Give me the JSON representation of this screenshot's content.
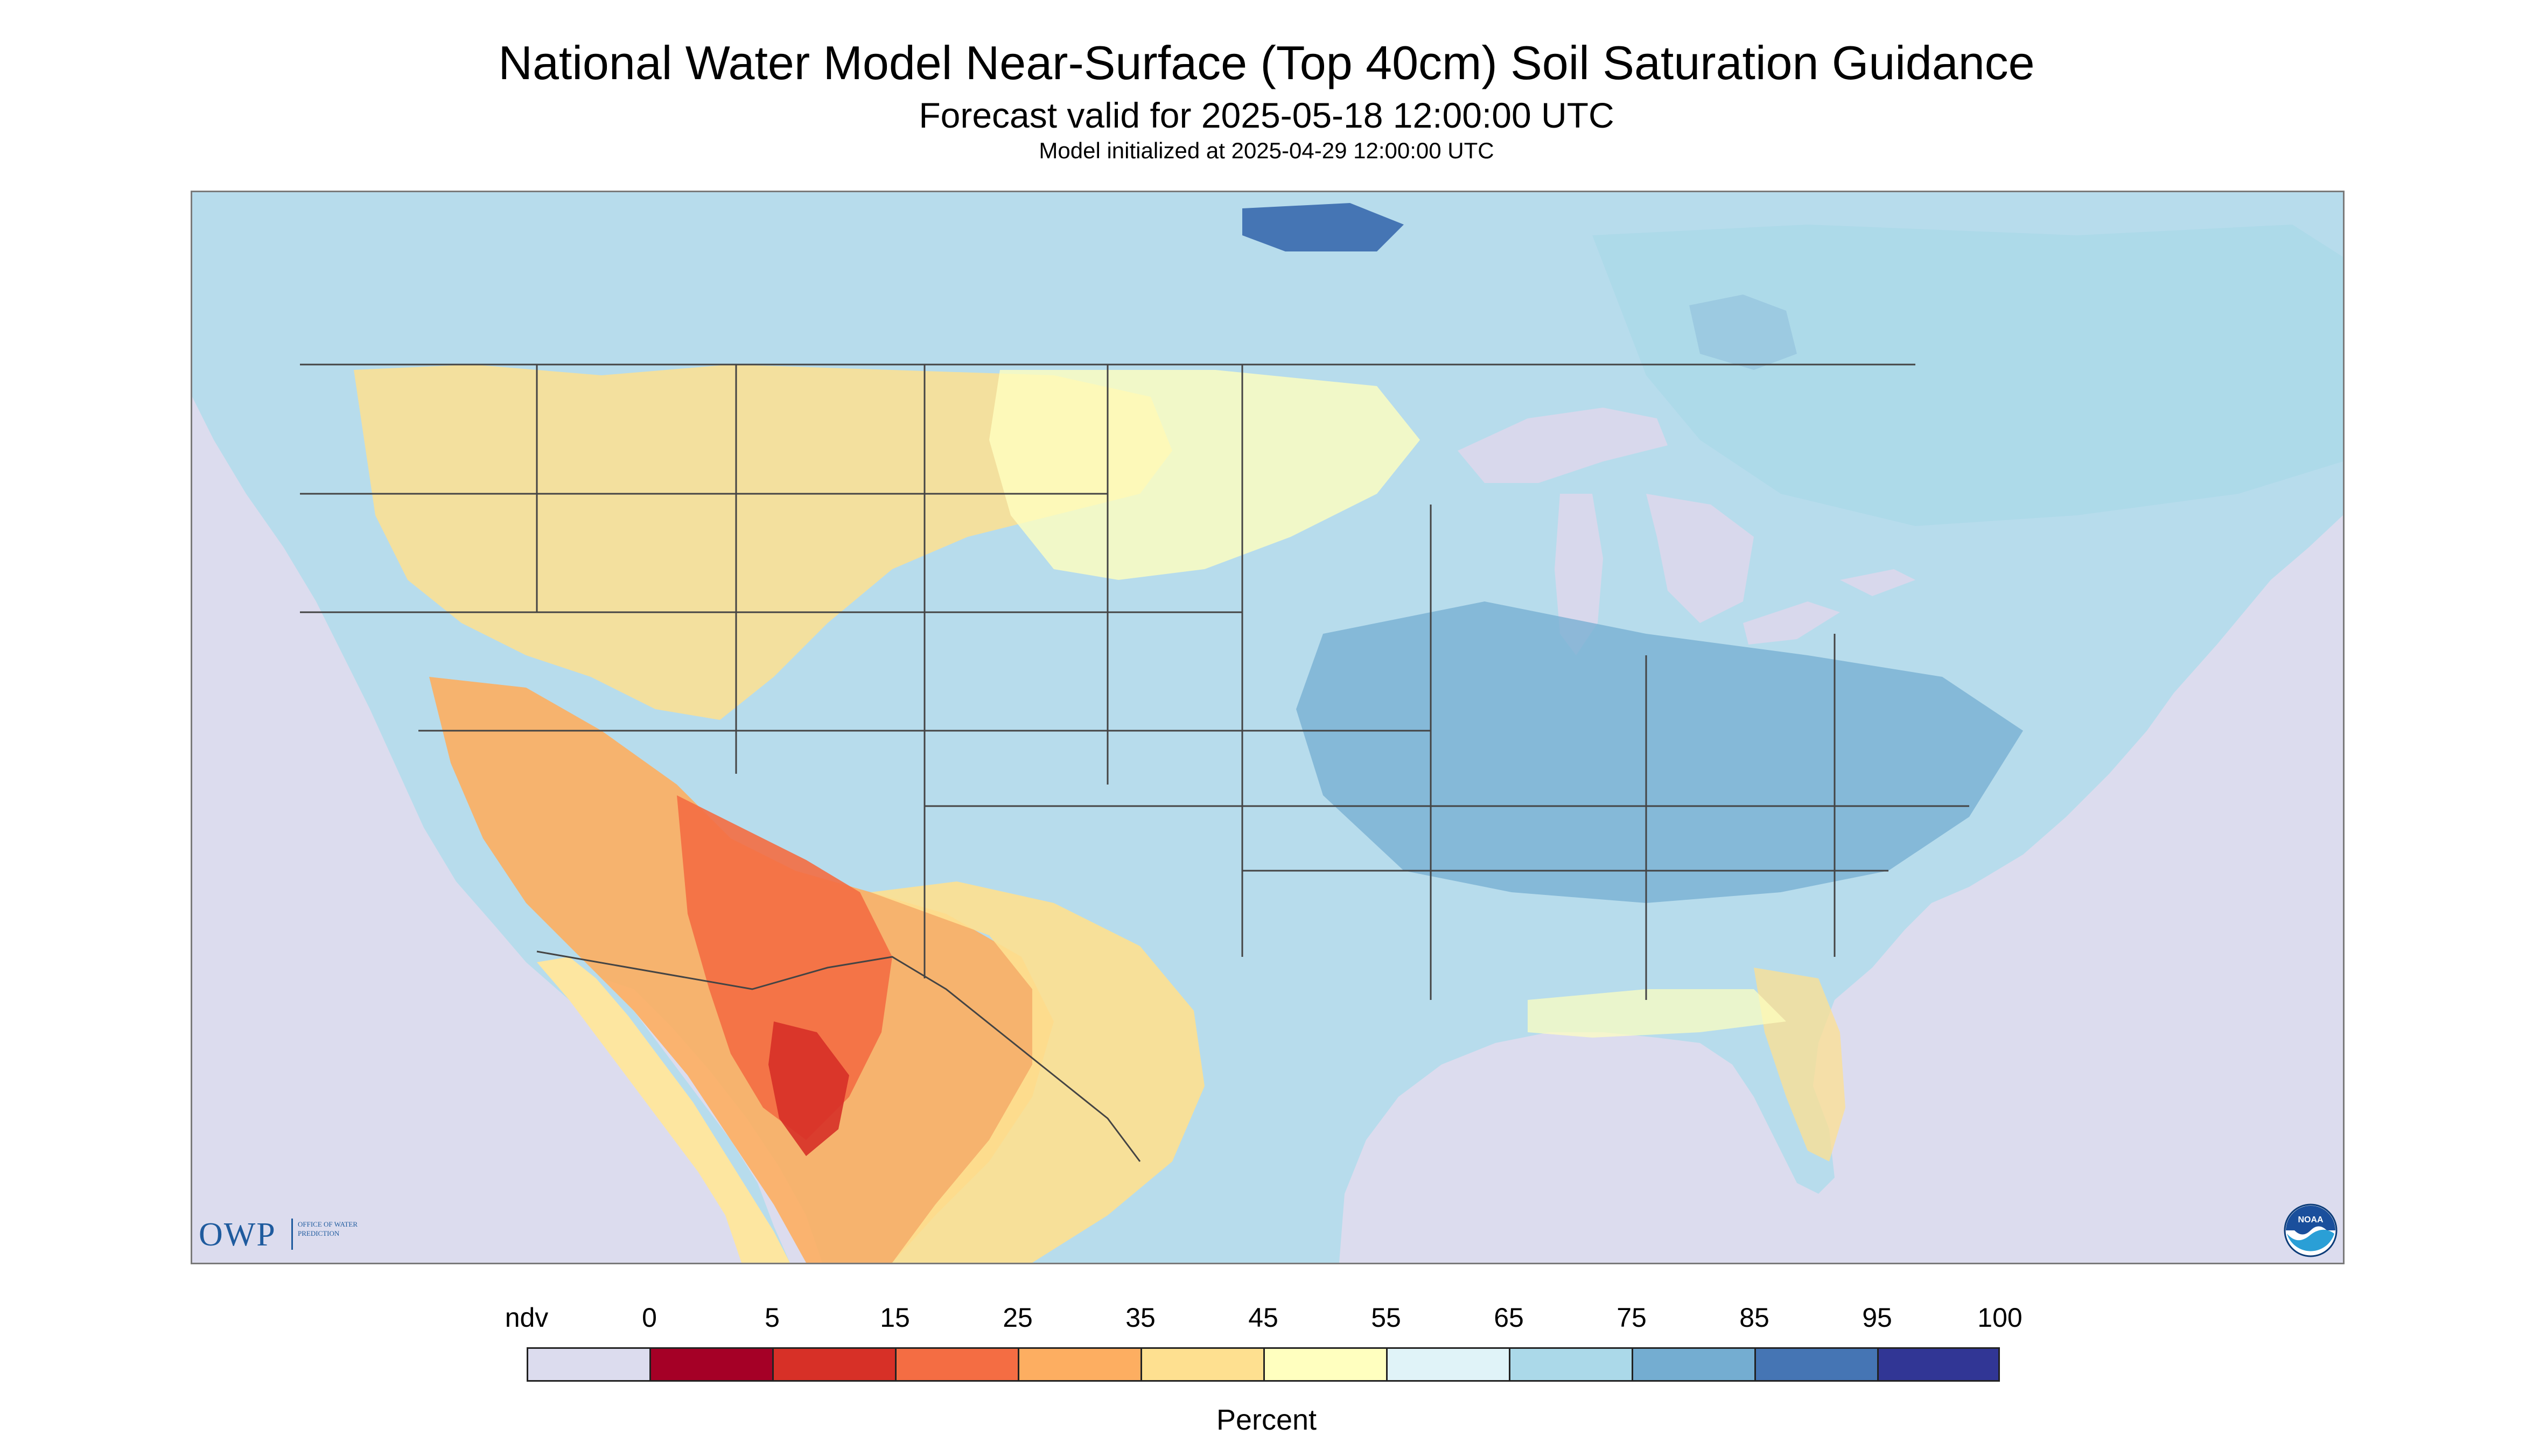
{
  "header": {
    "title": "National Water Model Near-Surface (Top 40cm) Soil Saturation Guidance",
    "subtitle": "Forecast valid for 2025-05-18 12:00:00 UTC",
    "init_line": "Model initialized at 2025-04-29 12:00:00 UTC"
  },
  "logos": {
    "owp_letters": "OWP",
    "owp_text": "OFFICE OF WATER PREDICTION",
    "noaa_text": "NOAA"
  },
  "legend": {
    "unit": "Percent",
    "labels": [
      "ndv",
      "0",
      "5",
      "15",
      "25",
      "35",
      "45",
      "55",
      "65",
      "75",
      "85",
      "95",
      "100"
    ],
    "colors": [
      "#dcdcee",
      "#a50026",
      "#d73027",
      "#f46d43",
      "#fdae61",
      "#fee090",
      "#ffffbf",
      "#e0f3f8",
      "#abd9e9",
      "#74add1",
      "#4575b4",
      "#313695"
    ]
  },
  "map_colors": {
    "no_data": "#dcdcee",
    "land_base": "#b7dcec",
    "lake": "#d8d8ec",
    "border": "#444444"
  }
}
